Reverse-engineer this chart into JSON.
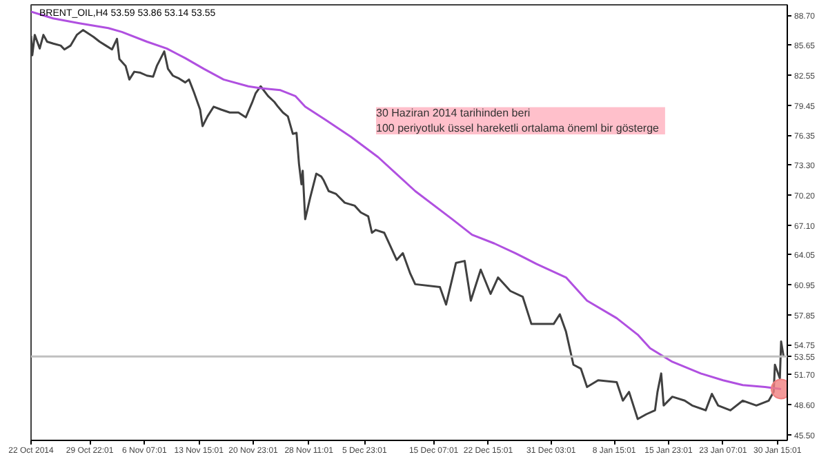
{
  "chart_data": {
    "type": "line",
    "title": "BRENT_OIL,H4 53.59 53.86 53.14 53.55",
    "xlim": [
      "2014-10-22T00:00",
      "2015-01-31T23:00"
    ],
    "ylim": [
      44.9,
      89.8
    ],
    "xticks": [
      {
        "value": "2014-10-22T00:00",
        "label": "22 Oct 2014"
      },
      {
        "value": "2014-10-29T22:01",
        "label": "29 Oct 22:01"
      },
      {
        "value": "2014-11-06T07:01",
        "label": "6 Nov 07:01"
      },
      {
        "value": "2014-11-13T15:01",
        "label": "13 Nov 15:01"
      },
      {
        "value": "2014-11-20T23:01",
        "label": "20 Nov 23:01"
      },
      {
        "value": "2014-11-28T11:01",
        "label": "28 Nov 11:01"
      },
      {
        "value": "2014-12-05T23:01",
        "label": "5 Dec 23:01"
      },
      {
        "value": "2014-12-15T07:01",
        "label": "15 Dec 07:01"
      },
      {
        "value": "2014-12-22T15:01",
        "label": "22 Dec 15:01"
      },
      {
        "value": "2014-12-31T03:01",
        "label": "31 Dec 03:01"
      },
      {
        "value": "2015-01-08T15:01",
        "label": "8 Jan 15:01"
      },
      {
        "value": "2015-01-15T23:01",
        "label": "15 Jan 23:01"
      },
      {
        "value": "2015-01-23T07:01",
        "label": "23 Jan 07:01"
      },
      {
        "value": "2015-01-30T15:01",
        "label": "30 Jan 15:01"
      }
    ],
    "yticks": [
      {
        "value": 88.7,
        "label": "88.70"
      },
      85.65,
      82.55,
      79.45,
      76.35,
      {
        "value": 73.3,
        "label": "73.30"
      },
      {
        "value": 70.2,
        "label": "70.20"
      },
      {
        "value": 67.1,
        "label": "67.10"
      },
      64.05,
      60.95,
      57.85,
      54.75,
      {
        "value": 51.7,
        "label": "51.70"
      },
      {
        "value": 48.6,
        "label": "48.60"
      },
      {
        "value": 45.5,
        "label": "45.50"
      }
    ],
    "grid": false,
    "line_style": "solid",
    "series": [
      {
        "color": "#404040",
        "x": [
          "2014-10-22T00:00",
          "2014-10-22T04:00",
          "2014-10-22T12:00",
          "2014-10-23T04:00",
          "2014-10-23T16:00",
          "2014-10-24T04:00",
          "2014-10-25T00:00",
          "2014-10-26T00:00",
          "2014-10-26T12:00",
          "2014-10-27T08:00",
          "2014-10-28T04:00",
          "2014-10-29T00:00",
          "2014-10-30T10:00",
          "2014-10-31T06:00",
          "2014-11-01T02:00",
          "2014-11-01T22:00",
          "2014-11-02T14:00",
          "2014-11-02T22:00",
          "2014-11-03T18:00",
          "2014-11-04T06:00",
          "2014-11-04T22:00",
          "2014-11-05T18:00",
          "2014-11-06T15:00",
          "2014-11-07T11:00",
          "2014-11-07T23:00",
          "2014-11-08T23:00",
          "2014-11-09T11:00",
          "2014-11-10T03:00",
          "2014-11-10T23:00",
          "2014-11-11T19:00",
          "2014-11-12T07:00",
          "2014-11-12T23:00",
          "2014-11-13T19:00",
          "2014-11-14T03:00",
          "2014-11-14T19:00",
          "2014-11-15T15:00",
          "2014-11-16T15:00",
          "2014-11-17T19:00",
          "2014-11-18T23:00",
          "2014-11-19T23:00",
          "2014-11-20T19:00",
          "2014-11-21T07:00",
          "2014-11-21T23:00",
          "2014-11-22T23:00",
          "2014-11-23T19:00",
          "2014-11-24T07:00",
          "2014-11-24T23:00",
          "2014-11-25T15:00",
          "2014-11-26T07:00",
          "2014-11-26T19:00",
          "2014-11-27T03:00",
          "2014-11-27T11:00",
          "2014-11-27T15:00",
          "2014-11-27T23:00",
          "2014-11-28T15:00",
          "2014-11-29T11:00",
          "2014-11-30T03:00",
          "2014-11-30T11:00",
          "2014-12-01T03:00",
          "2014-12-02T03:00",
          "2014-12-03T07:00",
          "2014-12-04T15:00",
          "2014-12-05T11:00",
          "2014-12-06T11:00",
          "2014-12-06T23:00",
          "2014-12-07T11:00",
          "2014-12-08T15:00",
          "2014-12-09T11:00",
          "2014-12-10T07:00",
          "2014-12-11T03:00",
          "2014-12-12T03:00",
          "2014-12-12T19:00",
          "2014-12-16T03:00",
          "2014-12-16T23:00",
          "2014-12-18T07:00",
          "2014-12-19T11:00",
          "2014-12-20T07:00",
          "2014-12-21T15:00",
          "2014-12-22T23:00",
          "2014-12-23T23:00",
          "2014-12-25T15:00",
          "2014-12-27T07:00",
          "2014-12-28T11:00",
          "2014-12-31T11:00",
          "2015-01-01T07:00",
          "2015-01-02T03:00",
          "2015-01-03T03:00",
          "2015-01-04T03:00",
          "2015-01-04T23:00",
          "2015-01-06T11:00",
          "2015-01-08T23:00",
          "2015-01-09T19:00",
          "2015-01-10T15:00",
          "2015-01-11T19:00",
          "2015-01-12T23:00",
          "2015-01-14T03:00",
          "2015-01-14T11:00",
          "2015-01-14T23:00",
          "2015-01-15T07:00",
          "2015-01-16T11:00",
          "2015-01-18T03:00",
          "2015-01-19T03:00",
          "2015-01-20T23:00",
          "2015-01-21T19:00",
          "2015-01-22T15:00",
          "2015-01-24T07:00",
          "2015-01-25T23:00",
          "2015-01-27T19:00",
          "2015-01-29T11:00",
          "2015-01-30T03:00",
          "2015-01-30T07:00",
          "2015-01-30T23:00",
          "2015-01-31T03:00",
          "2015-01-31T11:00"
        ],
        "values": [
          86.6,
          84.6,
          86.7,
          85.3,
          86.7,
          86.0,
          85.8,
          85.6,
          85.2,
          85.6,
          86.7,
          87.2,
          86.5,
          86.0,
          85.6,
          85.2,
          86.3,
          84.2,
          83.5,
          82.1,
          82.9,
          82.8,
          82.5,
          82.4,
          83.5,
          85.0,
          83.2,
          82.5,
          82.2,
          81.8,
          82.1,
          80.8,
          79.0,
          77.3,
          78.3,
          79.3,
          79.0,
          78.7,
          78.7,
          78.2,
          79.7,
          80.7,
          81.4,
          80.4,
          79.8,
          79.3,
          78.7,
          78.3,
          76.5,
          76.6,
          73.4,
          71.3,
          72.7,
          67.7,
          69.9,
          72.4,
          72.1,
          71.7,
          70.6,
          70.3,
          69.4,
          69.1,
          68.4,
          68.0,
          66.3,
          66.6,
          66.3,
          64.9,
          63.5,
          64.2,
          62.1,
          61.0,
          60.7,
          58.9,
          63.2,
          63.4,
          59.3,
          62.5,
          60.0,
          61.7,
          60.3,
          59.7,
          56.9,
          56.9,
          57.9,
          56.1,
          52.7,
          52.3,
          50.4,
          51.1,
          50.9,
          49.0,
          49.9,
          47.1,
          47.6,
          48.0,
          49.9,
          51.8,
          48.5,
          49.4,
          49.0,
          48.5,
          48.0,
          49.7,
          48.5,
          48.0,
          49.0,
          48.5,
          49.0,
          49.9,
          52.7,
          51.3,
          55.1,
          53.55
        ]
      },
      {
        "color": "#b050e0",
        "x": [
          "2014-10-22T00:00",
          "2014-10-25T00:00",
          "2014-10-28T12:00",
          "2014-11-01T10:00",
          "2014-11-03T06:00",
          "2014-11-06T15:00",
          "2014-11-09T07:00",
          "2014-11-11T19:00",
          "2014-11-14T07:00",
          "2014-11-16T23:00",
          "2014-11-20T07:00",
          "2014-11-21T23:00",
          "2014-11-24T15:00",
          "2014-11-26T15:00",
          "2014-11-27T23:00",
          "2014-11-30T19:00",
          "2014-12-04T03:00",
          "2014-12-07T19:00",
          "2014-12-12T19:00",
          "2014-12-17T19:00",
          "2014-12-20T11:00",
          "2014-12-23T11:00",
          "2014-12-26T07:00",
          "2014-12-29T03:00",
          "2015-01-02T03:00",
          "2015-01-04T23:00",
          "2015-01-08T23:00",
          "2015-01-11T19:00",
          "2015-01-13T11:00",
          "2015-01-16T11:00",
          "2015-01-20T07:00",
          "2015-01-23T07:00",
          "2015-01-25T23:00",
          "2015-01-28T23:00",
          "2015-01-31T03:00"
        ],
        "values": [
          89.1,
          88.4,
          87.9,
          87.4,
          87.0,
          86.0,
          85.3,
          84.3,
          83.2,
          82.1,
          81.4,
          81.2,
          81.0,
          80.4,
          79.3,
          77.9,
          76.2,
          74.1,
          70.6,
          67.7,
          66.1,
          65.2,
          64.2,
          63.1,
          61.7,
          59.3,
          57.5,
          55.8,
          54.4,
          53.0,
          51.8,
          51.1,
          50.6,
          50.4,
          50.2
        ]
      },
      {
        "type": "scatter",
        "color": "#f08080",
        "marker": "circle",
        "x": [
          "2015-01-31T03:00"
        ],
        "values": [
          50.2
        ]
      }
    ],
    "ref_lines": [
      {
        "axis": "y",
        "value": 53.55,
        "label": "53.55",
        "color": "#c0c0c0"
      }
    ],
    "annotations": [
      "30 Haziran 2014 tarihinden beri\n 100  periyotluk üssel hareketli ortalama öneml bir gösterge"
    ]
  }
}
